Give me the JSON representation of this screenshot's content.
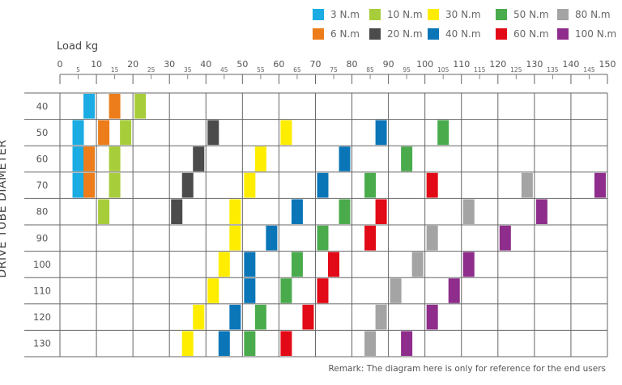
{
  "chart_data": {
    "type": "heatmap",
    "xlabel": "Load kg",
    "ylabel": "DRIVE TUBE DIAMETER",
    "x_major_ticks": [
      "0",
      "10",
      "20",
      "30",
      "40",
      "50",
      "60",
      "70",
      "80",
      "90",
      "100",
      "110",
      "120",
      "130",
      "140",
      "150"
    ],
    "x_minor_ticks": [
      "5",
      "15",
      "25",
      "35",
      "45",
      "55",
      "65",
      "75",
      "85",
      "95",
      "105",
      "115",
      "125",
      "135",
      "145"
    ],
    "xlim": [
      0,
      150
    ],
    "rows": [
      "40",
      "50",
      "60",
      "70",
      "80",
      "90",
      "100",
      "110",
      "120",
      "130"
    ],
    "legend": [
      {
        "name": "3 N.m",
        "color": "#1aace3"
      },
      {
        "name": "10 N.m",
        "color": "#a8cd3b"
      },
      {
        "name": "30 N.m",
        "color": "#ffed00"
      },
      {
        "name": "50 N.m",
        "color": "#4aab4d"
      },
      {
        "name": "80 N.m",
        "color": "#a4a4a4"
      },
      {
        "name": "6 N.m",
        "color": "#ec7d1a"
      },
      {
        "name": "20 N.m",
        "color": "#4b4b4b"
      },
      {
        "name": "40 N.m",
        "color": "#0a76b8"
      },
      {
        "name": "60 N.m",
        "color": "#e20a16"
      },
      {
        "name": "100 N.m",
        "color": "#8e2d8b"
      }
    ],
    "series": [
      {
        "name": "3 N.m",
        "load_kg": {
          "40": 8,
          "50": 5,
          "60": 5,
          "70": 5
        }
      },
      {
        "name": "6 N.m",
        "load_kg": {
          "40": 15,
          "50": 12,
          "60": 8,
          "70": 8
        }
      },
      {
        "name": "10 N.m",
        "load_kg": {
          "40": 22,
          "50": 18,
          "60": 15,
          "70": 15,
          "80": 12
        }
      },
      {
        "name": "20 N.m",
        "load_kg": {
          "50": 42,
          "60": 38,
          "70": 35,
          "80": 32
        }
      },
      {
        "name": "30 N.m",
        "load_kg": {
          "50": 62,
          "60": 55,
          "70": 52,
          "80": 48,
          "90": 48,
          "100": 45,
          "110": 42,
          "120": 38,
          "130": 35
        }
      },
      {
        "name": "40 N.m",
        "load_kg": {
          "50": 88,
          "60": 78,
          "70": 72,
          "80": 65,
          "90": 58,
          "100": 52,
          "110": 52,
          "120": 48,
          "130": 45
        }
      },
      {
        "name": "50 N.m",
        "load_kg": {
          "50": 105,
          "60": 95,
          "70": 85,
          "80": 78,
          "90": 72,
          "100": 65,
          "110": 62,
          "120": 55,
          "130": 52
        }
      },
      {
        "name": "60 N.m",
        "load_kg": {
          "70": 102,
          "80": 88,
          "90": 85,
          "100": 75,
          "110": 72,
          "120": 68,
          "130": 62
        }
      },
      {
        "name": "80 N.m",
        "load_kg": {
          "70": 128,
          "80": 112,
          "90": 102,
          "100": 98,
          "110": 92,
          "120": 88,
          "130": 85
        }
      },
      {
        "name": "100 N.m",
        "load_kg": {
          "70": 148,
          "80": 132,
          "90": 122,
          "100": 112,
          "110": 108,
          "120": 102,
          "130": 95
        }
      }
    ]
  },
  "remark": "Remark: The diagram here is only for reference for the end users"
}
